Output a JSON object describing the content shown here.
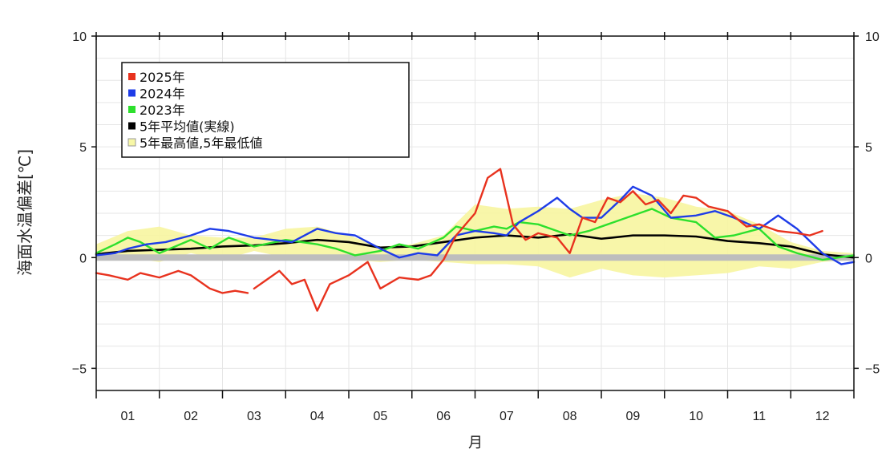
{
  "chart_data": {
    "type": "line",
    "title": "",
    "xlabel": "月",
    "ylabel": "海面水温偏差[℃]",
    "ylim": [
      -6,
      10
    ],
    "xlim": [
      0.5,
      12.5
    ],
    "yticks": [
      10,
      5,
      0,
      -5
    ],
    "month_labels": [
      "01",
      "02",
      "03",
      "04",
      "05",
      "06",
      "07",
      "08",
      "09",
      "10",
      "11",
      "12"
    ],
    "grid": true,
    "legend_position": "top-left",
    "legend": [
      {
        "label": "2025年",
        "color": "#e8321e"
      },
      {
        "label": "2024年",
        "color": "#1e3ce8"
      },
      {
        "label": "2023年",
        "color": "#2de02d"
      },
      {
        "label": "5年平均値(実線)",
        "color": "#000000"
      },
      {
        "label": "5年最高値,5年最低値",
        "color": "#f7f7a6"
      }
    ],
    "zero_band_color": "#bdbdbd",
    "band": {
      "name": "5年最高値,5年最低値",
      "color": "#f7f5a0",
      "x": [
        0.5,
        1.0,
        1.5,
        2.0,
        2.5,
        3.0,
        3.5,
        4.0,
        4.5,
        5.0,
        5.5,
        6.0,
        6.5,
        7.0,
        7.5,
        8.0,
        8.5,
        9.0,
        9.5,
        10.0,
        10.5,
        11.0,
        11.5,
        12.0,
        12.5
      ],
      "high": [
        0.6,
        1.2,
        1.4,
        1.0,
        0.9,
        0.9,
        1.3,
        1.4,
        1.0,
        0.5,
        0.6,
        1.0,
        2.4,
        2.2,
        2.3,
        2.2,
        2.6,
        2.9,
        2.7,
        2.3,
        2.1,
        1.5,
        0.7,
        0.3,
        0.2
      ],
      "low": [
        0.0,
        0.0,
        -0.2,
        0.2,
        -0.1,
        0.3,
        0.0,
        -0.1,
        -0.1,
        -0.2,
        -0.1,
        -0.2,
        -0.3,
        -0.3,
        -0.4,
        -0.9,
        -0.5,
        -0.8,
        -0.9,
        -0.8,
        -0.7,
        -0.4,
        -0.5,
        -0.2,
        -0.1
      ]
    },
    "series": [
      {
        "name": "5年平均値(実線)",
        "color": "#000000",
        "x": [
          0.5,
          1.0,
          1.5,
          2.0,
          2.5,
          3.0,
          3.5,
          4.0,
          4.5,
          5.0,
          5.5,
          6.0,
          6.5,
          7.0,
          7.5,
          8.0,
          8.5,
          9.0,
          9.5,
          10.0,
          10.5,
          11.0,
          11.5,
          12.0,
          12.5
        ],
        "y": [
          0.15,
          0.3,
          0.35,
          0.4,
          0.5,
          0.55,
          0.65,
          0.8,
          0.7,
          0.45,
          0.5,
          0.7,
          0.9,
          1.0,
          0.9,
          1.05,
          0.85,
          1.0,
          1.0,
          0.95,
          0.75,
          0.65,
          0.5,
          0.15,
          0.0
        ]
      },
      {
        "name": "2023年",
        "color": "#2de02d",
        "x": [
          0.5,
          0.8,
          1.0,
          1.2,
          1.5,
          2.0,
          2.3,
          2.6,
          3.0,
          3.5,
          4.0,
          4.3,
          4.6,
          5.0,
          5.3,
          5.6,
          6.0,
          6.2,
          6.5,
          6.8,
          7.0,
          7.2,
          7.5,
          7.8,
          8.0,
          8.3,
          8.6,
          9.0,
          9.3,
          9.6,
          10.0,
          10.3,
          10.6,
          11.0,
          11.3,
          11.6,
          12.0,
          12.5
        ],
        "y": [
          0.2,
          0.6,
          0.9,
          0.7,
          0.2,
          0.8,
          0.4,
          0.9,
          0.5,
          0.8,
          0.6,
          0.4,
          0.1,
          0.3,
          0.6,
          0.4,
          0.9,
          1.4,
          1.2,
          1.4,
          1.3,
          1.6,
          1.5,
          1.2,
          1.0,
          1.2,
          1.5,
          1.9,
          2.2,
          1.8,
          1.6,
          0.9,
          1.0,
          1.3,
          0.5,
          0.2,
          -0.1,
          0.1
        ]
      },
      {
        "name": "2024年",
        "color": "#1e3ce8",
        "x": [
          0.5,
          0.8,
          1.0,
          1.3,
          1.6,
          2.0,
          2.3,
          2.6,
          3.0,
          3.3,
          3.6,
          4.0,
          4.3,
          4.6,
          5.0,
          5.3,
          5.6,
          5.9,
          6.2,
          6.5,
          6.8,
          7.0,
          7.2,
          7.5,
          7.8,
          8.0,
          8.2,
          8.5,
          8.8,
          9.0,
          9.3,
          9.6,
          10.0,
          10.3,
          10.6,
          11.0,
          11.3,
          11.6,
          12.0,
          12.3,
          12.5
        ],
        "y": [
          0.1,
          0.2,
          0.4,
          0.6,
          0.7,
          1.0,
          1.3,
          1.2,
          0.9,
          0.8,
          0.7,
          1.3,
          1.1,
          1.0,
          0.4,
          0.0,
          0.2,
          0.1,
          1.0,
          1.2,
          1.1,
          1.0,
          1.6,
          2.1,
          2.7,
          2.2,
          1.8,
          1.8,
          2.6,
          3.2,
          2.8,
          1.8,
          1.9,
          2.1,
          1.8,
          1.3,
          1.9,
          1.3,
          0.2,
          -0.3,
          -0.2
        ]
      },
      {
        "name": "2025年",
        "color": "#e8321e",
        "x": [
          0.5,
          0.7,
          1.0,
          1.2,
          1.5,
          1.8,
          2.0,
          2.3,
          2.5,
          2.7,
          2.9
        ],
        "y": [
          -0.7,
          -0.8,
          -1.0,
          -0.7,
          -0.9,
          -0.6,
          -0.8,
          -1.4,
          -1.6,
          -1.5,
          -1.6
        ],
        "y2_x": [
          3.0,
          3.2,
          3.4,
          3.6,
          3.8,
          4.0,
          4.2,
          4.5,
          4.8,
          5.0,
          5.3,
          5.6,
          5.8,
          6.0,
          6.2,
          6.5,
          6.7,
          6.9,
          7.1,
          7.3,
          7.5,
          7.8,
          8.0,
          8.2,
          8.4,
          8.6,
          8.8,
          9.0,
          9.2,
          9.4,
          9.6,
          9.8,
          10.0,
          10.2,
          10.5,
          10.8,
          11.0,
          11.3,
          11.6,
          11.8,
          12.0
        ],
        "y2": [
          -1.4,
          -1.0,
          -0.6,
          -1.2,
          -1.0,
          -2.4,
          -1.2,
          -0.8,
          -0.2,
          -1.4,
          -0.9,
          -1.0,
          -0.8,
          -0.1,
          1.0,
          2.0,
          3.6,
          4.0,
          1.5,
          0.8,
          1.1,
          0.9,
          0.2,
          1.8,
          1.6,
          2.7,
          2.5,
          3.0,
          2.4,
          2.6,
          2.0,
          2.8,
          2.7,
          2.3,
          2.1,
          1.4,
          1.5,
          1.2,
          1.1,
          1.0,
          1.2
        ]
      }
    ]
  }
}
